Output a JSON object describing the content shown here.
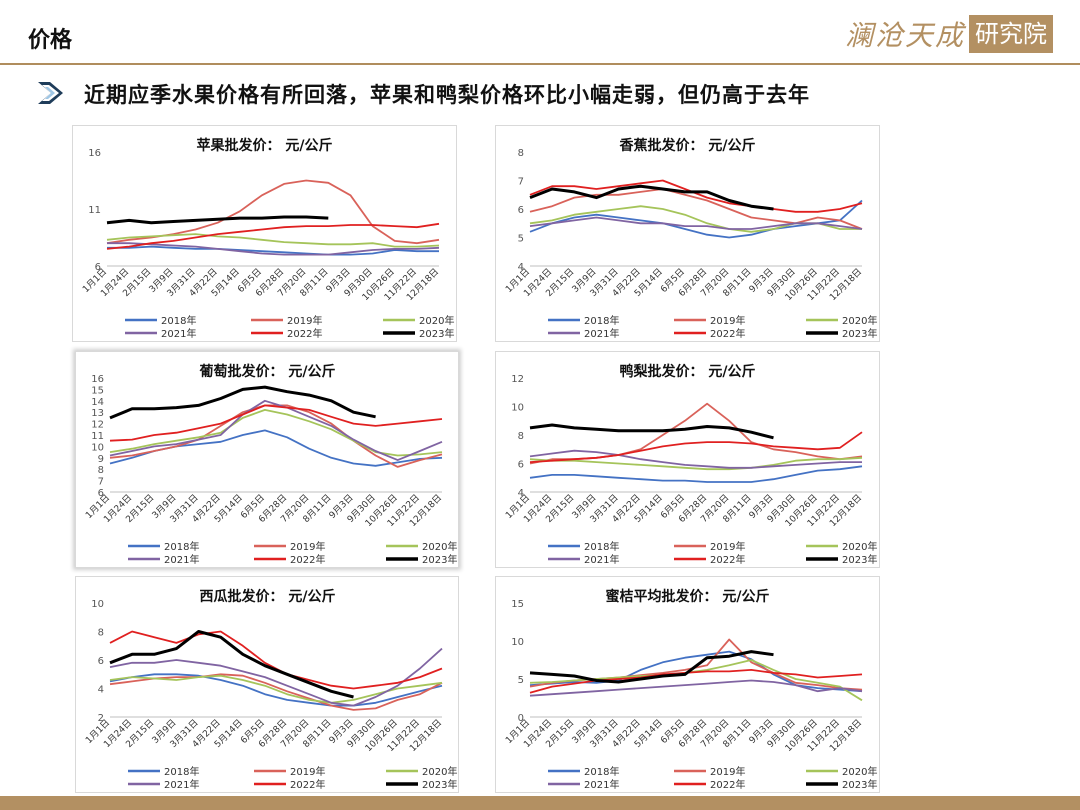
{
  "header": {
    "title": "价格",
    "logo_text": "澜沧天成",
    "logo_box_text": "研究院"
  },
  "subtitle": "近期应季水果价格有所回落，苹果和鸭梨价格环比小幅走弱，但仍高于去年",
  "icons": {
    "bullet": "chevron-right-icon"
  },
  "colors": {
    "accent": "#b08d5d",
    "arrow": "#1f3d5a"
  },
  "x_labels": [
    "1月1日",
    "1月24日",
    "2月15日",
    "3月9日",
    "3月31日",
    "4月22日",
    "5月14日",
    "6月5日",
    "6月28日",
    "7月20日",
    "8月11日",
    "9月3日",
    "9月30日",
    "10月26日",
    "11月22日",
    "12月18日"
  ],
  "legend": [
    {
      "name": "2018年",
      "color": "#4472c4"
    },
    {
      "name": "2019年",
      "color": "#d9625a"
    },
    {
      "name": "2020年",
      "color": "#a5c45a"
    },
    {
      "name": "2021年",
      "color": "#8064a2"
    },
    {
      "name": "2022年",
      "color": "#e02020"
    },
    {
      "name": "2023年",
      "color": "#000000"
    }
  ],
  "chart_data": [
    {
      "type": "line",
      "title": "苹果批发价：  元/公斤",
      "ylim": [
        6,
        16
      ],
      "yticks": [
        6,
        11,
        16
      ],
      "series": [
        {
          "name": "2018年",
          "values": [
            7.6,
            7.6,
            7.7,
            7.6,
            7.5,
            7.5,
            7.4,
            7.3,
            7.2,
            7.1,
            7.0,
            7.0,
            7.1,
            7.4,
            7.3,
            7.3
          ]
        },
        {
          "name": "2019年",
          "values": [
            8.0,
            8.3,
            8.5,
            8.8,
            9.2,
            9.8,
            10.8,
            12.2,
            13.2,
            13.5,
            13.3,
            12.2,
            9.5,
            8.2,
            8.0,
            8.3
          ]
        },
        {
          "name": "2020年",
          "values": [
            8.3,
            8.5,
            8.6,
            8.7,
            8.8,
            8.6,
            8.5,
            8.3,
            8.1,
            8.0,
            7.9,
            7.9,
            8.0,
            7.7,
            7.7,
            7.8
          ]
        },
        {
          "name": "2021年",
          "values": [
            8.0,
            8.0,
            7.9,
            7.8,
            7.7,
            7.5,
            7.3,
            7.1,
            7.0,
            7.0,
            7.0,
            7.2,
            7.4,
            7.5,
            7.5,
            7.6
          ]
        },
        {
          "name": "2022年",
          "values": [
            7.5,
            7.7,
            8.0,
            8.2,
            8.5,
            8.8,
            9.0,
            9.2,
            9.4,
            9.5,
            9.5,
            9.6,
            9.6,
            9.5,
            9.4,
            9.7
          ]
        },
        {
          "name": "2023年",
          "values": [
            9.8,
            10.0,
            9.8,
            9.9,
            10.0,
            10.1,
            10.2,
            10.2,
            10.3,
            10.3,
            10.2,
            null,
            null,
            null,
            null,
            null
          ]
        }
      ]
    },
    {
      "type": "line",
      "title": "香蕉批发价：  元/公斤",
      "ylim": [
        4,
        8
      ],
      "yticks": [
        4,
        5,
        6,
        7,
        8
      ],
      "series": [
        {
          "name": "2018年",
          "values": [
            5.2,
            5.5,
            5.7,
            5.8,
            5.7,
            5.6,
            5.5,
            5.3,
            5.1,
            5.0,
            5.1,
            5.3,
            5.4,
            5.5,
            5.6,
            6.3
          ]
        },
        {
          "name": "2019年",
          "values": [
            5.9,
            6.1,
            6.4,
            6.5,
            6.5,
            6.6,
            6.7,
            6.5,
            6.3,
            6.0,
            5.7,
            5.6,
            5.5,
            5.7,
            5.6,
            5.3
          ]
        },
        {
          "name": "2020年",
          "values": [
            5.5,
            5.6,
            5.8,
            5.9,
            6.0,
            6.1,
            6.0,
            5.8,
            5.5,
            5.3,
            5.2,
            5.3,
            5.5,
            5.5,
            5.3,
            5.3
          ]
        },
        {
          "name": "2021年",
          "values": [
            5.4,
            5.5,
            5.6,
            5.7,
            5.6,
            5.5,
            5.5,
            5.4,
            5.4,
            5.3,
            5.3,
            5.4,
            5.5,
            5.5,
            5.4,
            5.3
          ]
        },
        {
          "name": "2022年",
          "values": [
            6.5,
            6.8,
            6.8,
            6.7,
            6.8,
            6.9,
            7.0,
            6.7,
            6.4,
            6.2,
            6.1,
            6.0,
            5.9,
            5.9,
            6.0,
            6.2
          ]
        },
        {
          "name": "2023年",
          "values": [
            6.4,
            6.7,
            6.6,
            6.4,
            6.7,
            6.8,
            6.7,
            6.6,
            6.6,
            6.3,
            6.1,
            6.0,
            null,
            null,
            null,
            null
          ]
        }
      ]
    },
    {
      "type": "line",
      "title": "葡萄批发价：  元/公斤",
      "ylim": [
        6,
        16
      ],
      "yticks": [
        6,
        7,
        8,
        9,
        10,
        11,
        12,
        13,
        14,
        15,
        16
      ],
      "series": [
        {
          "name": "2018年",
          "values": [
            8.5,
            9.0,
            9.6,
            10.0,
            10.2,
            10.4,
            11.0,
            11.4,
            10.8,
            9.8,
            9.0,
            8.5,
            8.3,
            8.6,
            8.9,
            9.0
          ]
        },
        {
          "name": "2019年",
          "values": [
            9.0,
            9.2,
            9.6,
            10.0,
            10.6,
            11.8,
            13.0,
            13.6,
            13.6,
            13.0,
            12.0,
            10.5,
            9.2,
            8.2,
            8.8,
            9.3
          ]
        },
        {
          "name": "2020年",
          "values": [
            9.5,
            9.8,
            10.2,
            10.5,
            10.8,
            11.2,
            12.5,
            13.2,
            12.8,
            12.2,
            11.5,
            10.5,
            9.5,
            9.2,
            9.3,
            9.5
          ]
        },
        {
          "name": "2021年",
          "values": [
            9.2,
            9.6,
            10.0,
            10.2,
            10.6,
            11.0,
            12.8,
            14.0,
            13.4,
            12.6,
            11.8,
            10.6,
            9.6,
            8.8,
            9.6,
            10.4
          ]
        },
        {
          "name": "2022年",
          "values": [
            10.5,
            10.6,
            11.0,
            11.2,
            11.6,
            12.0,
            12.8,
            13.6,
            13.4,
            13.2,
            12.6,
            12.0,
            11.8,
            12.0,
            12.2,
            12.4
          ]
        },
        {
          "name": "2023年",
          "values": [
            12.5,
            13.3,
            13.3,
            13.4,
            13.6,
            14.2,
            15.0,
            15.2,
            14.8,
            14.5,
            14.0,
            13.0,
            12.6,
            null,
            null,
            null
          ]
        }
      ]
    },
    {
      "type": "line",
      "title": "鸭梨批发价：  元/公斤",
      "ylim": [
        4,
        12
      ],
      "yticks": [
        4,
        6,
        8,
        10,
        12
      ],
      "series": [
        {
          "name": "2018年",
          "values": [
            5.0,
            5.2,
            5.2,
            5.1,
            5.0,
            4.9,
            4.8,
            4.8,
            4.7,
            4.7,
            4.7,
            4.9,
            5.2,
            5.5,
            5.6,
            5.8
          ]
        },
        {
          "name": "2019年",
          "values": [
            6.0,
            6.3,
            6.3,
            6.4,
            6.6,
            7.0,
            8.0,
            9.0,
            10.2,
            9.0,
            7.5,
            7.0,
            6.8,
            6.5,
            6.3,
            6.5
          ]
        },
        {
          "name": "2020年",
          "values": [
            6.3,
            6.2,
            6.2,
            6.1,
            6.0,
            5.9,
            5.8,
            5.7,
            5.6,
            5.6,
            5.7,
            5.9,
            6.2,
            6.3,
            6.3,
            6.4
          ]
        },
        {
          "name": "2021年",
          "values": [
            6.5,
            6.7,
            6.9,
            6.8,
            6.6,
            6.3,
            6.1,
            5.9,
            5.8,
            5.7,
            5.7,
            5.8,
            5.9,
            6.0,
            6.1,
            6.1
          ]
        },
        {
          "name": "2022年",
          "values": [
            6.1,
            6.2,
            6.3,
            6.4,
            6.6,
            6.9,
            7.2,
            7.4,
            7.5,
            7.5,
            7.4,
            7.2,
            7.1,
            7.0,
            7.1,
            8.2
          ]
        },
        {
          "name": "2023年",
          "values": [
            8.5,
            8.7,
            8.5,
            8.4,
            8.3,
            8.3,
            8.3,
            8.4,
            8.6,
            8.5,
            8.2,
            7.8,
            null,
            null,
            null,
            null
          ]
        }
      ]
    },
    {
      "type": "line",
      "title": "西瓜批发价：  元/公斤",
      "ylim": [
        2,
        10
      ],
      "yticks": [
        2,
        4,
        6,
        8,
        10
      ],
      "series": [
        {
          "name": "2018年",
          "values": [
            4.5,
            4.8,
            5.0,
            5.0,
            4.9,
            4.6,
            4.2,
            3.6,
            3.2,
            3.0,
            2.8,
            2.8,
            3.0,
            3.4,
            3.8,
            4.2
          ]
        },
        {
          "name": "2019年",
          "values": [
            4.3,
            4.5,
            4.7,
            4.8,
            4.8,
            5.0,
            4.9,
            4.4,
            3.8,
            3.3,
            2.8,
            2.5,
            2.6,
            3.2,
            3.6,
            4.4
          ]
        },
        {
          "name": "2020年",
          "values": [
            4.6,
            4.8,
            4.7,
            4.6,
            4.8,
            4.9,
            4.6,
            4.2,
            3.6,
            3.2,
            3.0,
            3.2,
            3.6,
            4.0,
            4.2,
            4.4
          ]
        },
        {
          "name": "2021年",
          "values": [
            5.5,
            5.8,
            5.8,
            6.0,
            5.8,
            5.6,
            5.2,
            4.8,
            4.2,
            3.6,
            3.0,
            2.8,
            3.4,
            4.2,
            5.4,
            6.8
          ]
        },
        {
          "name": "2022年",
          "values": [
            7.2,
            8.0,
            7.6,
            7.2,
            7.8,
            8.0,
            7.0,
            5.8,
            5.0,
            4.6,
            4.2,
            4.0,
            4.2,
            4.4,
            4.8,
            5.4
          ]
        },
        {
          "name": "2023年",
          "values": [
            5.8,
            6.4,
            6.4,
            6.8,
            8.0,
            7.6,
            6.4,
            5.6,
            5.0,
            4.4,
            3.8,
            3.4,
            null,
            null,
            null,
            null
          ]
        }
      ]
    },
    {
      "type": "line",
      "title": "蜜桔平均批发价：  元/公斤",
      "ylim": [
        0,
        15
      ],
      "yticks": [
        0,
        5,
        10,
        15
      ],
      "series": [
        {
          "name": "2018年",
          "values": [
            4.2,
            4.4,
            4.6,
            4.5,
            4.8,
            6.2,
            7.2,
            7.8,
            8.2,
            8.6,
            7.6,
            5.6,
            4.2,
            3.8,
            3.6,
            3.4
          ]
        },
        {
          "name": "2019年",
          "values": [
            4.0,
            4.5,
            4.8,
            5.0,
            5.2,
            5.5,
            5.8,
            6.2,
            6.8,
            10.2,
            7.2,
            5.8,
            4.5,
            4.2,
            3.8,
            3.6
          ]
        },
        {
          "name": "2020年",
          "values": [
            4.5,
            4.6,
            4.8,
            5.0,
            5.2,
            5.4,
            5.5,
            5.8,
            6.2,
            6.8,
            7.5,
            6.2,
            5.0,
            4.5,
            4.0,
            2.2
          ]
        },
        {
          "name": "2021年",
          "values": [
            2.8,
            3.0,
            3.2,
            3.4,
            3.6,
            3.8,
            4.0,
            4.2,
            4.4,
            4.6,
            4.8,
            4.6,
            4.2,
            3.4,
            3.8,
            3.4
          ]
        },
        {
          "name": "2022年",
          "values": [
            3.2,
            4.0,
            4.4,
            4.8,
            5.0,
            5.2,
            5.6,
            5.8,
            6.0,
            6.0,
            6.2,
            5.8,
            5.6,
            5.2,
            5.4,
            5.6
          ]
        },
        {
          "name": "2023年",
          "values": [
            5.8,
            5.6,
            5.4,
            4.8,
            4.6,
            5.0,
            5.4,
            5.6,
            7.8,
            8.0,
            8.6,
            8.2,
            null,
            null,
            null,
            null
          ]
        }
      ]
    }
  ]
}
